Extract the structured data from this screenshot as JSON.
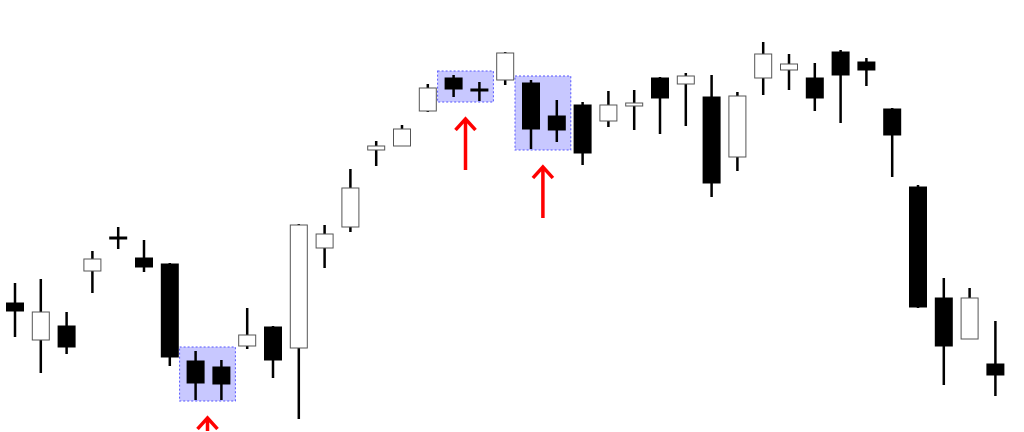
{
  "chart_data": {
    "type": "candlestick",
    "title": "",
    "xlabel": "",
    "ylabel": "",
    "axes_visible": false,
    "grid": false,
    "ylim": [
      0,
      432
    ],
    "colors": {
      "up_fill": "#ffffff",
      "down_fill": "#000000",
      "outline": "#555555",
      "wick": "#000000",
      "highlight_fill": "#c8c8ff",
      "highlight_border": "#5555ff",
      "arrow": "#ff0000"
    },
    "candles": [
      {
        "o": 129,
        "h": 149,
        "l": 95,
        "c": 121
      },
      {
        "o": 92,
        "h": 153,
        "l": 59,
        "c": 120
      },
      {
        "o": 106,
        "h": 120,
        "l": 78,
        "c": 85
      },
      {
        "o": 161,
        "h": 181,
        "l": 139,
        "c": 173
      },
      {
        "o": 195,
        "h": 205,
        "l": 183,
        "c": 194
      },
      {
        "o": 174,
        "h": 192,
        "l": 160,
        "c": 165
      },
      {
        "o": 168,
        "h": 169,
        "l": 66,
        "c": 75
      },
      {
        "o": 71,
        "h": 81,
        "l": 32,
        "c": 49
      },
      {
        "o": 65,
        "h": 72,
        "l": 32,
        "c": 48
      },
      {
        "o": 86,
        "h": 124,
        "l": 83,
        "c": 97
      },
      {
        "o": 105,
        "h": 106,
        "l": 54,
        "c": 72
      },
      {
        "o": 84,
        "h": 208,
        "l": 13,
        "c": 207
      },
      {
        "o": 184,
        "h": 207,
        "l": 164,
        "c": 198
      },
      {
        "o": 205,
        "h": 263,
        "l": 200,
        "c": 244
      },
      {
        "o": 282,
        "h": 291,
        "l": 266,
        "c": 286
      },
      {
        "o": 286,
        "h": 307,
        "l": 286,
        "c": 303
      },
      {
        "o": 321,
        "h": 348,
        "l": 320,
        "c": 344
      },
      {
        "o": 354,
        "h": 357,
        "l": 335,
        "c": 343
      },
      {
        "o": 343,
        "h": 350,
        "l": 331,
        "c": 342
      },
      {
        "o": 352,
        "h": 380,
        "l": 347,
        "c": 379
      },
      {
        "o": 349,
        "h": 352,
        "l": 283,
        "c": 303
      },
      {
        "o": 316,
        "h": 332,
        "l": 290,
        "c": 302
      },
      {
        "o": 327,
        "h": 330,
        "l": 267,
        "c": 279
      },
      {
        "o": 311,
        "h": 341,
        "l": 305,
        "c": 327
      },
      {
        "o": 326,
        "h": 342,
        "l": 302,
        "c": 329
      },
      {
        "o": 354,
        "h": 355,
        "l": 298,
        "c": 334
      },
      {
        "o": 348,
        "h": 359,
        "l": 306,
        "c": 356
      },
      {
        "o": 335,
        "h": 357,
        "l": 235,
        "c": 249
      },
      {
        "o": 275,
        "h": 340,
        "l": 261,
        "c": 336
      },
      {
        "o": 354,
        "h": 390,
        "l": 337,
        "c": 378
      },
      {
        "o": 362,
        "h": 378,
        "l": 342,
        "c": 368
      },
      {
        "o": 354,
        "h": 369,
        "l": 321,
        "c": 334
      },
      {
        "o": 380,
        "h": 382,
        "l": 309,
        "c": 357
      },
      {
        "o": 370,
        "h": 374,
        "l": 346,
        "c": 362
      },
      {
        "o": 323,
        "h": 324,
        "l": 255,
        "c": 297
      },
      {
        "o": 245,
        "h": 247,
        "l": 124,
        "c": 125
      },
      {
        "o": 134,
        "h": 154,
        "l": 47,
        "c": 86
      },
      {
        "o": 93,
        "h": 144,
        "l": 93,
        "c": 134
      },
      {
        "o": 68,
        "h": 111,
        "l": 36,
        "c": 57
      }
    ],
    "highlights": [
      {
        "candles": [
          8,
          9
        ],
        "arrow": "up"
      },
      {
        "candles": [
          18,
          19
        ],
        "arrow": "up"
      },
      {
        "candles": [
          21,
          22
        ],
        "arrow": "up"
      }
    ]
  }
}
